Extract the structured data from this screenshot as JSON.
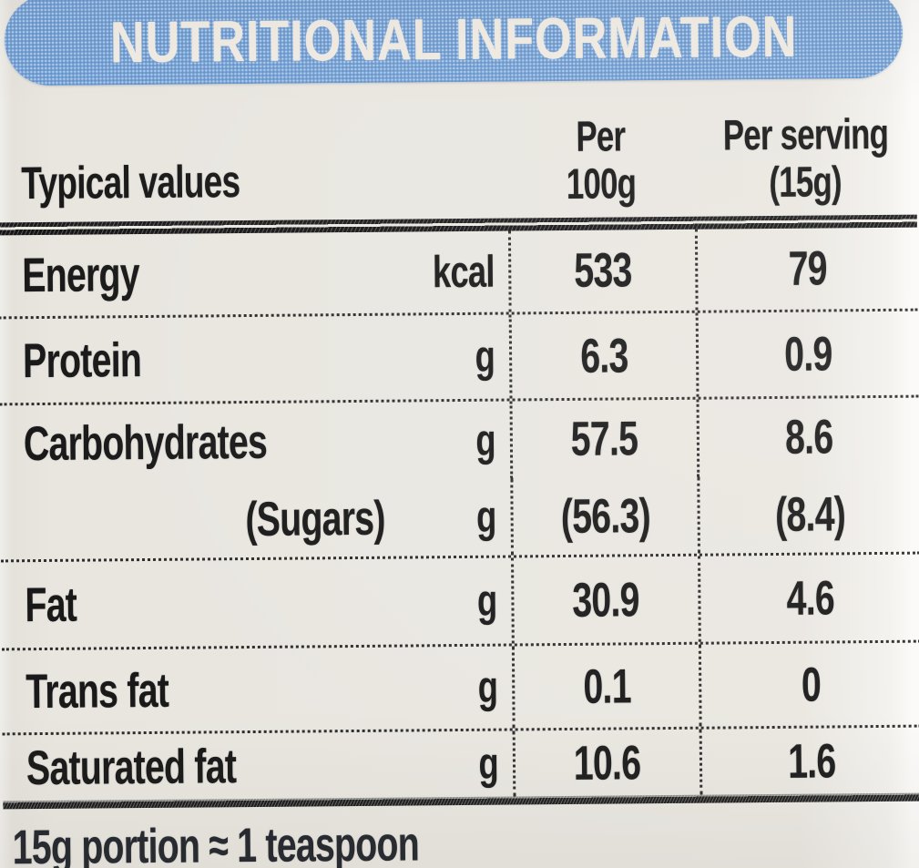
{
  "label": {
    "title": "NUTRITIONAL INFORMATION",
    "band_color": "#74a2d7",
    "background_color": "#e9e6e0",
    "text_color": "#191919"
  },
  "table": {
    "col_header": "Typical values",
    "per_100g_header": {
      "line1": "Per",
      "line2": "100g"
    },
    "per_serving_header": {
      "line1": "Per serving",
      "line2": "(15g)"
    },
    "rows": [
      {
        "name": "Energy",
        "unit": "kcal",
        "per_100g": "533",
        "per_serving": "79"
      },
      {
        "name": "Protein",
        "unit": "g",
        "per_100g": "6.3",
        "per_serving": "0.9"
      },
      {
        "name": "Carbohydrates",
        "unit": "g",
        "per_100g": "57.5",
        "per_serving": "8.6"
      },
      {
        "name": "(Sugars)",
        "unit": "g",
        "per_100g": "(56.3)",
        "per_serving": "(8.4)"
      },
      {
        "name": "Fat",
        "unit": "g",
        "per_100g": "30.9",
        "per_serving": "4.6"
      },
      {
        "name": "Trans fat",
        "unit": "g",
        "per_100g": "0.1",
        "per_serving": "0"
      },
      {
        "name": "Saturated fat",
        "unit": "g",
        "per_100g": "10.6",
        "per_serving": "1.6"
      }
    ],
    "footnote": "15g portion ≈ 1 teaspoon"
  }
}
